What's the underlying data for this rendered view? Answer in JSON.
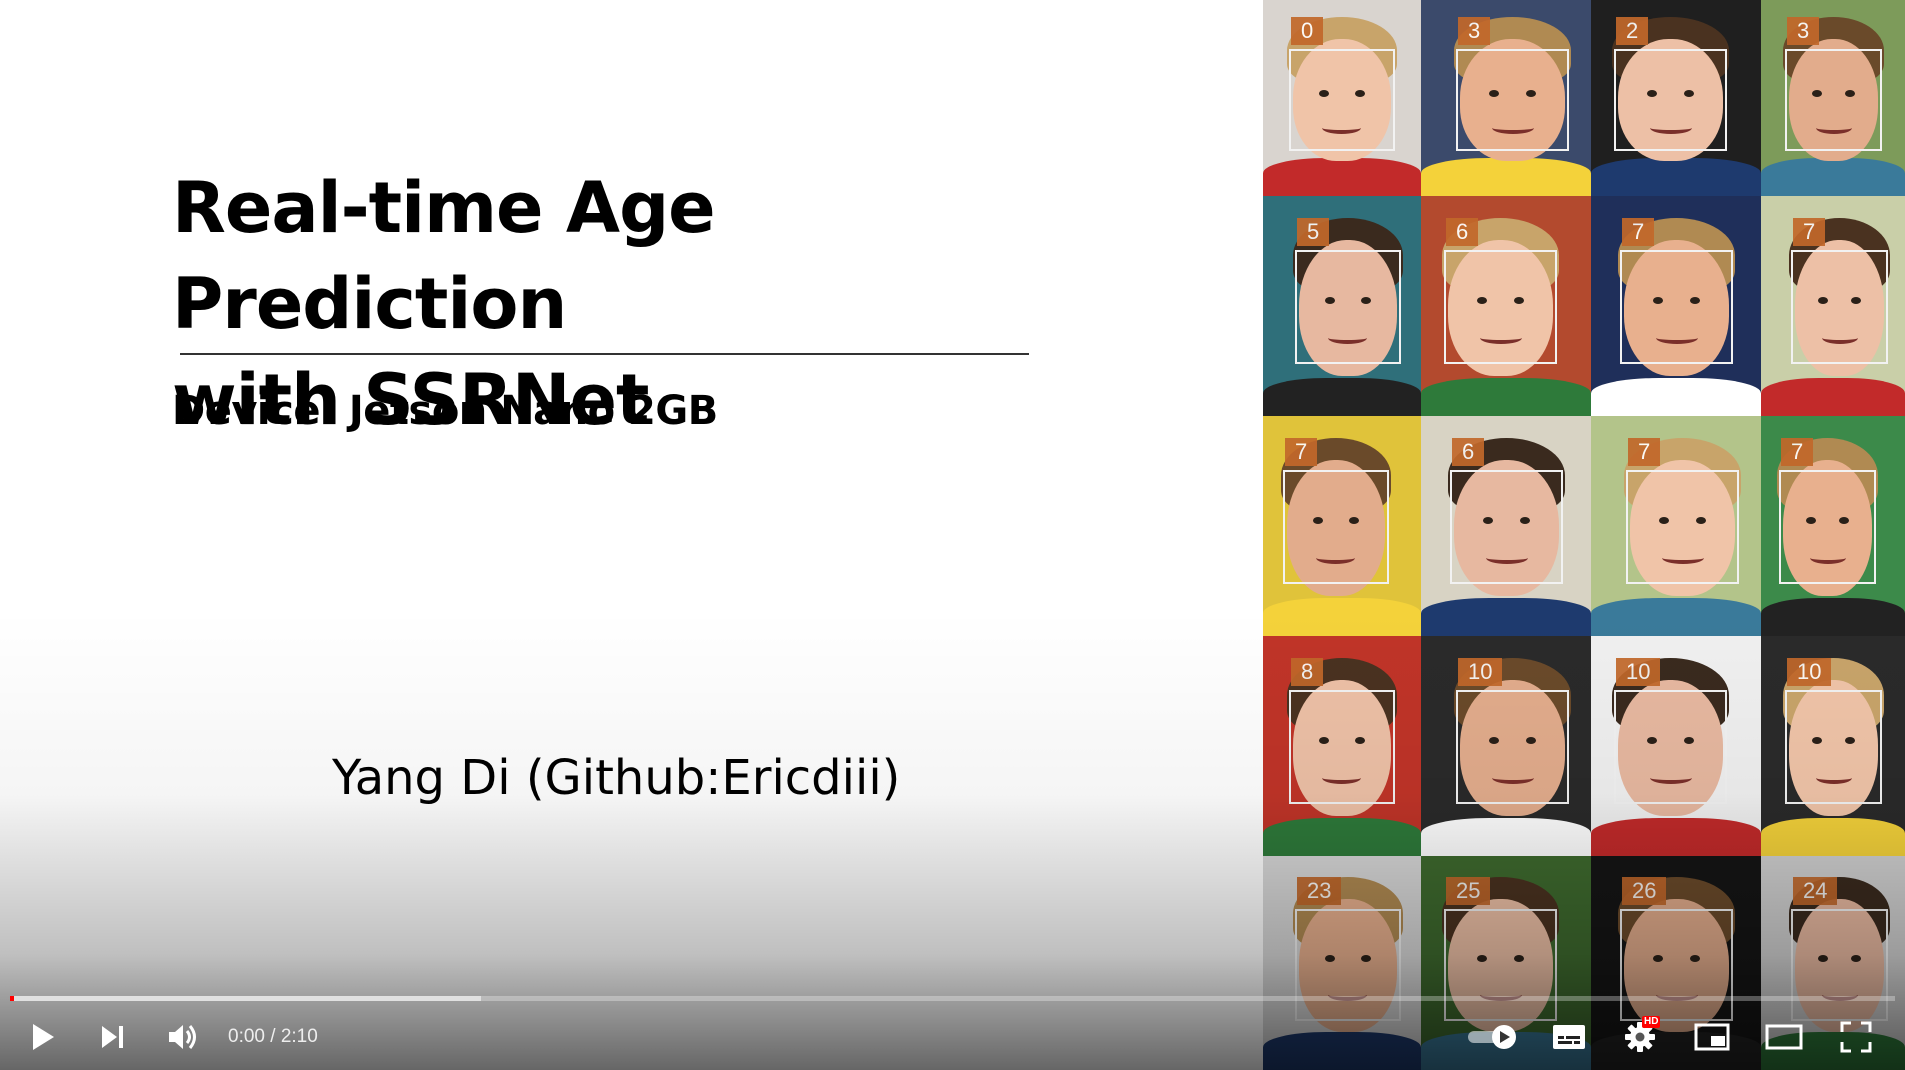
{
  "slide": {
    "title_line1": "Real-time Age Prediction",
    "title_line2": "with SSRNet",
    "subtitle": "Device: Jetson Nano 2GB",
    "author": "Yang Di (Github:Ericdiii)"
  },
  "faces": {
    "rows": [
      [
        "0",
        "3",
        "2",
        "3"
      ],
      [
        "5",
        "6",
        "7",
        "7"
      ],
      [
        "7",
        "6",
        "7",
        "7"
      ],
      [
        "8",
        "10",
        "10",
        "10"
      ],
      [
        "23",
        "25",
        "26",
        "24"
      ]
    ]
  },
  "player": {
    "time_current": "0:00",
    "time_separator": "/",
    "time_duration": "2:10",
    "progress_played_fraction": 0.001,
    "progress_buffered_fraction": 0.25,
    "hd_badge": "HD",
    "colors": {
      "progress_played": "#ff0000",
      "age_label": "#c2682a"
    },
    "icons": {
      "play": "play-icon",
      "next": "skip-next-icon",
      "volume": "volume-icon",
      "autoplay": "autoplay-toggle-icon",
      "subtitles": "subtitles-icon",
      "settings": "gear-icon",
      "miniplayer": "miniplayer-icon",
      "theater": "theater-mode-icon",
      "fullscreen": "fullscreen-icon"
    }
  }
}
